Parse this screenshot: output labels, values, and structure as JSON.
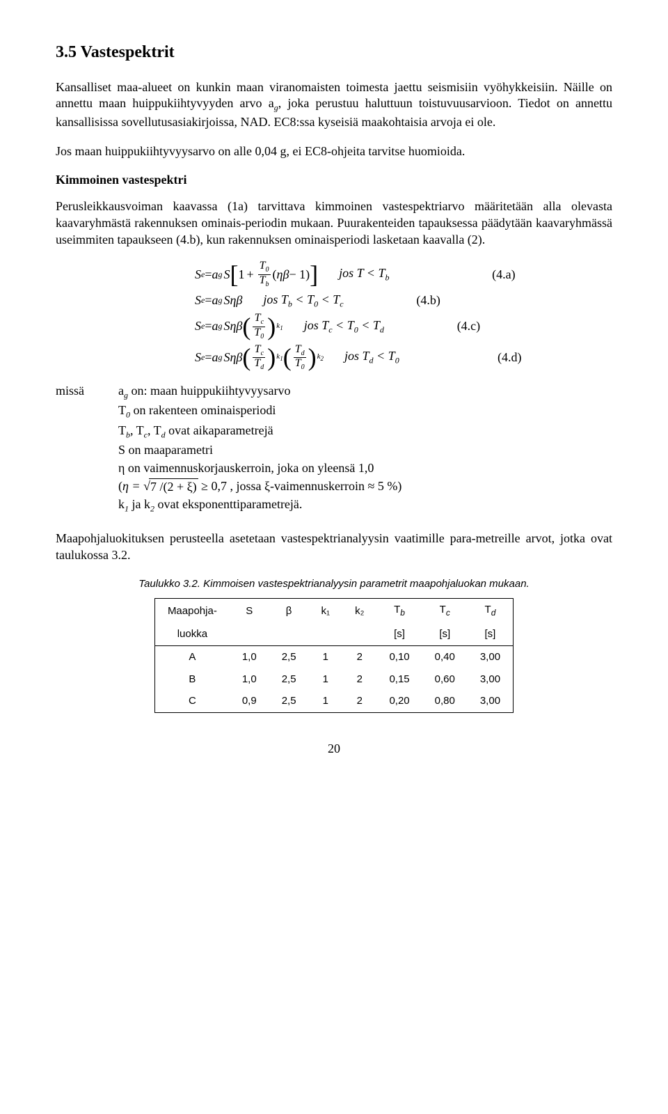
{
  "heading": "3.5 Vastespektrit",
  "para1": "Kansalliset maa-alueet on kunkin maan viranomaisten toimesta jaettu seismisiin vyöhykkeisiin. Näille on annettu maan huippukiihtyvyyden arvo a",
  "para1_sub": "g",
  "para1_cont": ", joka perustuu haluttuun toistuvuusarvioon. Tiedot on annettu kansallisissa sovellutusasiakirjoissa, NAD. EC8:ssa kyseisiä maakohtaisia arvoja ei ole.",
  "para2": "Jos maan huippukiihtyvyysarvo on alle 0,04 g, ei EC8-ohjeita tarvitse huomioida.",
  "sub1": "Kimmoinen vastespektri",
  "para3": "Perusleikkausvoiman kaavassa (1a) tarvittava kimmoinen vastespektriarvo määritetään alla olevasta kaavaryhmästä rakennuksen ominais-periodin mukaan. Puurakenteiden tapauksessa päädytään kaavaryhmässä useimmiten tapaukseen (4.b), kun rakennuksen ominaisperiodi lasketaan kaavalla (2).",
  "eq": {
    "Se": "S",
    "e": "e",
    "eqs": " = ",
    "a": "a",
    "g": "g",
    "S": "S",
    "one": "1",
    "plus": "+",
    "T0": "T",
    "zero": "0",
    "Tb": "T",
    "b": "b",
    "etabeta": "ηβ",
    "minus1": " − 1",
    "Tc": "T",
    "c": "c",
    "Td": "T",
    "d": "d",
    "k1": "k",
    "k1n": "1",
    "k2": "k",
    "k2n": "2",
    "cond_a": "jos T < T",
    "cond_a_sub": "b",
    "cond_b1": "jos T",
    "cond_b2": " < T",
    "cond_b3": " < T",
    "num_a": "(4.a)",
    "num_b": "(4.b)",
    "num_c": "(4.c)",
    "num_d": "(4.d)"
  },
  "defs_label": "missä",
  "defs": {
    "l1a": "a",
    "l1b": "g",
    "l1c": " on: maan huippukiihtyvyysarvo",
    "l2a": "T",
    "l2b": "0",
    "l2c": " on rakenteen ominaisperiodi",
    "l3a": "T",
    "l3b": "b",
    "l3c": ", T",
    "l3d": "c",
    "l3e": ", T",
    "l3f": "d",
    "l3g": " ovat aikaparametrejä",
    "l4": "S on maaparametri",
    "l5": "η on vaimennuskorjauskerroin, joka on yleensä 1,0",
    "l6a": "(",
    "l6eta": "η = ",
    "l6rad": "7 /(2 + ξ)",
    "l6b": " ≥ 0,7 , jossa ξ-vaimennuskerroin ≈ 5 %)",
    "l7a": "k",
    "l7b": "1",
    "l7c": " ja k",
    "l7d": "2",
    "l7e": " ovat eksponenttiparametrejä."
  },
  "para4": "Maapohjaluokituksen perusteella asetetaan vastespektrianalyysin vaatimille para-metreille arvot, jotka ovat taulukossa 3.2.",
  "tablecap": "Taulukko 3.2. Kimmoisen vastespektrianalyysin parametrit maapohjaluokan mukaan.",
  "table": {
    "h1": "Maapohja-",
    "h1b": "luokka",
    "h2": "S",
    "h3": "β",
    "h4": "k₁",
    "h5": "k₂",
    "h6": "T",
    "h6s": "b",
    "h7": "T",
    "h7s": "c",
    "h8": "T",
    "h8s": "d",
    "u": "[s]",
    "rows": [
      [
        "A",
        "1,0",
        "2,5",
        "1",
        "2",
        "0,10",
        "0,40",
        "3,00"
      ],
      [
        "B",
        "1,0",
        "2,5",
        "1",
        "2",
        "0,15",
        "0,60",
        "3,00"
      ],
      [
        "C",
        "0,9",
        "2,5",
        "1",
        "2",
        "0,20",
        "0,80",
        "3,00"
      ]
    ]
  },
  "pagenum": "20"
}
